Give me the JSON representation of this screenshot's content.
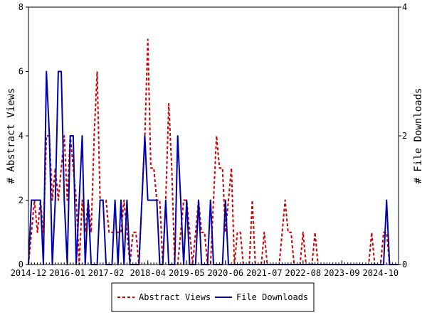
{
  "chart_data": {
    "type": "line",
    "xlabel": "",
    "ylabel_left": "# Abstract Views",
    "ylabel_right": "# File Downloads",
    "ylim_left": [
      0,
      8
    ],
    "ylim_right": [
      0,
      4
    ],
    "yticks_left": [
      "0",
      "2",
      "4",
      "6",
      "8"
    ],
    "yticks_right": [
      "0",
      "2",
      "4"
    ],
    "x_range_months": [
      "2014-12",
      "2025-04"
    ],
    "xtick_labels": [
      "2014-12",
      "2016-01",
      "2017-02",
      "2018-04",
      "2019-05",
      "2020-06",
      "2021-07",
      "2022-08",
      "2023-09",
      "2024-10"
    ],
    "legend_position": "bottom-center",
    "grid": false,
    "series": [
      {
        "name": "Abstract Views",
        "axis": "left",
        "color": "#cc0000",
        "style": "dashed",
        "points": [
          [
            "2014-12",
            0
          ],
          [
            "2015-01",
            1
          ],
          [
            "2015-02",
            2
          ],
          [
            "2015-03",
            1
          ],
          [
            "2015-04",
            2
          ],
          [
            "2015-05",
            1
          ],
          [
            "2015-06",
            4
          ],
          [
            "2015-07",
            4
          ],
          [
            "2015-08",
            2
          ],
          [
            "2015-09",
            3
          ],
          [
            "2015-10",
            2
          ],
          [
            "2015-11",
            3
          ],
          [
            "2015-12",
            4
          ],
          [
            "2016-01",
            2
          ],
          [
            "2016-02",
            4
          ],
          [
            "2016-03",
            3
          ],
          [
            "2016-04",
            2
          ],
          [
            "2016-05",
            0
          ],
          [
            "2016-06",
            2
          ],
          [
            "2016-07",
            1
          ],
          [
            "2016-08",
            2
          ],
          [
            "2016-09",
            1
          ],
          [
            "2016-10",
            4
          ],
          [
            "2016-11",
            6
          ],
          [
            "2016-12",
            2
          ],
          [
            "2017-01",
            2
          ],
          [
            "2017-02",
            2
          ],
          [
            "2017-03",
            1
          ],
          [
            "2017-04",
            1
          ],
          [
            "2017-05",
            1
          ],
          [
            "2017-06",
            1
          ],
          [
            "2017-07",
            1
          ],
          [
            "2017-08",
            2
          ],
          [
            "2017-09",
            1
          ],
          [
            "2017-10",
            0
          ],
          [
            "2017-11",
            1
          ],
          [
            "2017-12",
            1
          ],
          [
            "2018-01",
            0
          ],
          [
            "2018-02",
            2
          ],
          [
            "2018-03",
            4
          ],
          [
            "2018-04",
            7
          ],
          [
            "2018-05",
            3
          ],
          [
            "2018-06",
            3
          ],
          [
            "2018-07",
            2
          ],
          [
            "2018-08",
            2
          ],
          [
            "2018-09",
            0
          ],
          [
            "2018-10",
            2
          ],
          [
            "2018-11",
            5
          ],
          [
            "2018-12",
            3
          ],
          [
            "2019-01",
            0
          ],
          [
            "2019-02",
            0
          ],
          [
            "2019-03",
            1
          ],
          [
            "2019-04",
            2
          ],
          [
            "2019-05",
            2
          ],
          [
            "2019-06",
            1
          ],
          [
            "2019-07",
            0
          ],
          [
            "2019-08",
            1
          ],
          [
            "2019-09",
            2
          ],
          [
            "2019-10",
            1
          ],
          [
            "2019-11",
            1
          ],
          [
            "2019-12",
            0
          ],
          [
            "2020-01",
            0
          ],
          [
            "2020-02",
            2
          ],
          [
            "2020-03",
            4
          ],
          [
            "2020-04",
            3
          ],
          [
            "2020-05",
            3
          ],
          [
            "2020-06",
            1
          ],
          [
            "2020-07",
            2
          ],
          [
            "2020-08",
            3
          ],
          [
            "2020-09",
            0
          ],
          [
            "2020-10",
            1
          ],
          [
            "2020-11",
            1
          ],
          [
            "2020-12",
            0
          ],
          [
            "2021-01",
            0
          ],
          [
            "2021-02",
            0
          ],
          [
            "2021-03",
            2
          ],
          [
            "2021-04",
            0
          ],
          [
            "2021-05",
            0
          ],
          [
            "2021-06",
            0
          ],
          [
            "2021-07",
            1
          ],
          [
            "2021-08",
            0
          ],
          [
            "2021-09",
            0
          ],
          [
            "2021-10",
            0
          ],
          [
            "2021-11",
            0
          ],
          [
            "2021-12",
            0
          ],
          [
            "2022-01",
            1
          ],
          [
            "2022-02",
            2
          ],
          [
            "2022-03",
            1
          ],
          [
            "2022-04",
            1
          ],
          [
            "2022-05",
            0
          ],
          [
            "2022-06",
            0
          ],
          [
            "2022-07",
            0
          ],
          [
            "2022-08",
            1
          ],
          [
            "2022-09",
            0
          ],
          [
            "2022-10",
            0
          ],
          [
            "2022-11",
            0
          ],
          [
            "2022-12",
            1
          ],
          [
            "2023-01",
            0
          ],
          [
            "2023-02",
            0
          ],
          [
            "2024-06",
            0
          ],
          [
            "2024-07",
            1
          ],
          [
            "2024-08",
            0
          ],
          [
            "2024-09",
            0
          ],
          [
            "2024-10",
            0
          ],
          [
            "2024-11",
            1
          ],
          [
            "2024-12",
            1
          ],
          [
            "2025-01",
            0
          ],
          [
            "2025-04",
            0
          ]
        ]
      },
      {
        "name": "File Downloads",
        "axis": "right",
        "color": "#0000aa",
        "style": "solid",
        "points": [
          [
            "2014-12",
            0
          ],
          [
            "2015-01",
            1
          ],
          [
            "2015-02",
            1
          ],
          [
            "2015-03",
            1
          ],
          [
            "2015-04",
            1
          ],
          [
            "2015-05",
            0
          ],
          [
            "2015-06",
            3
          ],
          [
            "2015-07",
            2
          ],
          [
            "2015-08",
            0
          ],
          [
            "2015-09",
            1
          ],
          [
            "2015-10",
            3
          ],
          [
            "2015-11",
            3
          ],
          [
            "2015-12",
            1
          ],
          [
            "2016-01",
            0
          ],
          [
            "2016-02",
            2
          ],
          [
            "2016-03",
            2
          ],
          [
            "2016-04",
            0
          ],
          [
            "2016-05",
            1
          ],
          [
            "2016-06",
            2
          ],
          [
            "2016-07",
            0
          ],
          [
            "2016-08",
            1
          ],
          [
            "2016-09",
            0
          ],
          [
            "2016-10",
            0
          ],
          [
            "2016-11",
            0
          ],
          [
            "2016-12",
            1
          ],
          [
            "2017-01",
            1
          ],
          [
            "2017-02",
            0
          ],
          [
            "2017-03",
            0
          ],
          [
            "2017-04",
            0
          ],
          [
            "2017-05",
            1
          ],
          [
            "2017-06",
            0
          ],
          [
            "2017-07",
            1
          ],
          [
            "2017-08",
            0
          ],
          [
            "2017-09",
            1
          ],
          [
            "2017-10",
            0
          ],
          [
            "2017-11",
            0
          ],
          [
            "2017-12",
            0
          ],
          [
            "2018-01",
            0
          ],
          [
            "2018-02",
            1
          ],
          [
            "2018-03",
            2
          ],
          [
            "2018-04",
            1
          ],
          [
            "2018-05",
            1
          ],
          [
            "2018-06",
            1
          ],
          [
            "2018-07",
            1
          ],
          [
            "2018-08",
            0
          ],
          [
            "2018-09",
            0
          ],
          [
            "2018-10",
            1
          ],
          [
            "2018-11",
            0
          ],
          [
            "2018-12",
            0
          ],
          [
            "2019-01",
            0
          ],
          [
            "2019-02",
            2
          ],
          [
            "2019-03",
            1
          ],
          [
            "2019-04",
            0
          ],
          [
            "2019-05",
            1
          ],
          [
            "2019-06",
            0
          ],
          [
            "2019-07",
            0
          ],
          [
            "2019-08",
            0
          ],
          [
            "2019-09",
            1
          ],
          [
            "2019-10",
            0
          ],
          [
            "2019-11",
            0
          ],
          [
            "2019-12",
            0
          ],
          [
            "2020-01",
            1
          ],
          [
            "2020-02",
            0
          ],
          [
            "2020-03",
            0
          ],
          [
            "2020-04",
            0
          ],
          [
            "2020-05",
            0
          ],
          [
            "2020-06",
            1
          ],
          [
            "2020-07",
            0
          ],
          [
            "2020-08",
            0
          ],
          [
            "2024-10",
            0
          ],
          [
            "2024-11",
            0
          ],
          [
            "2024-12",
            1
          ],
          [
            "2025-01",
            0
          ],
          [
            "2025-04",
            0
          ]
        ]
      }
    ]
  }
}
